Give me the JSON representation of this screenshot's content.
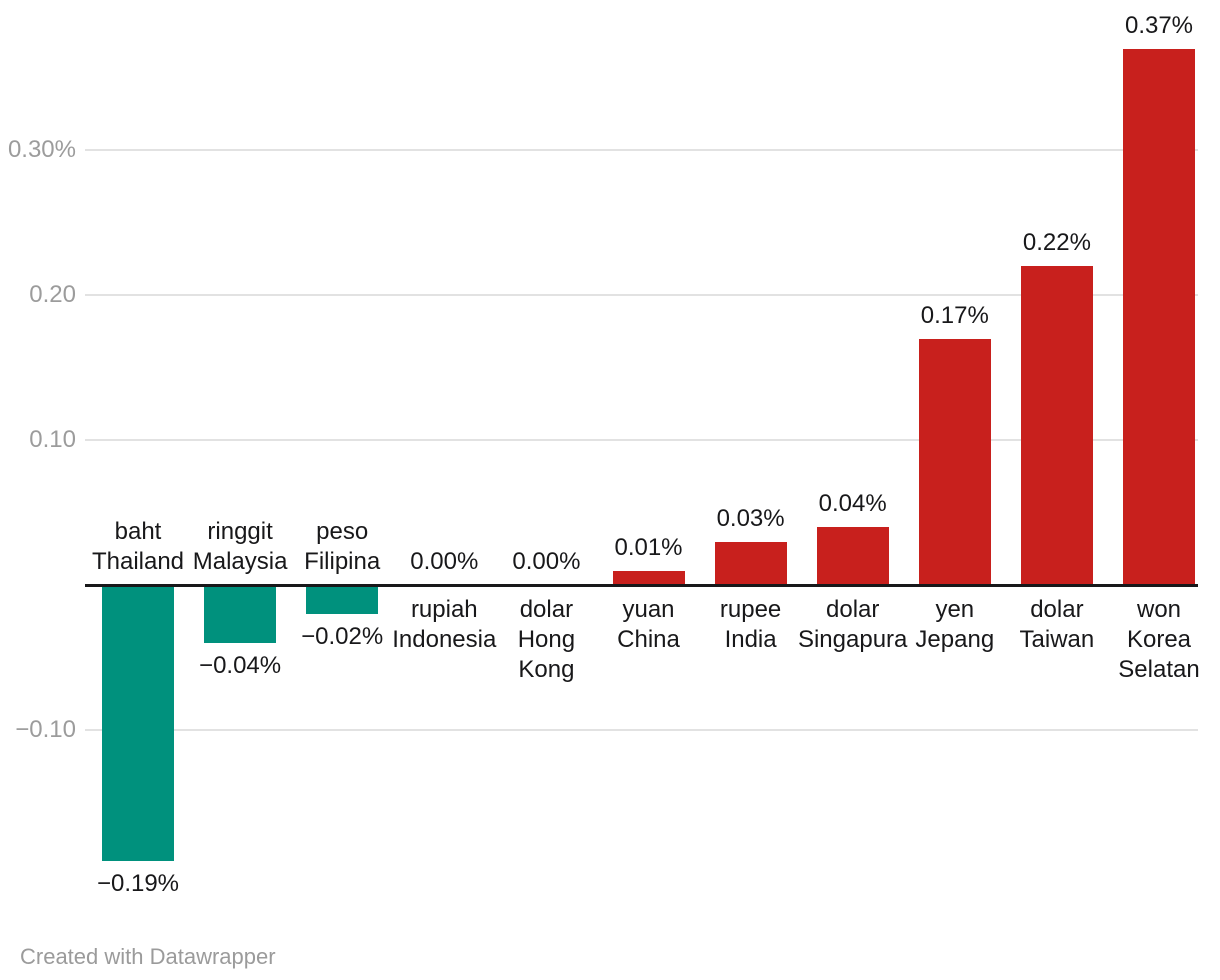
{
  "chart_data": {
    "type": "bar",
    "title": "",
    "xlabel": "",
    "ylabel": "",
    "unit": "%",
    "categories": [
      "baht Thailand",
      "ringgit Malaysia",
      "peso Filipina",
      "rupiah Indonesia",
      "dolar Hong Kong",
      "yuan China",
      "rupee India",
      "dolar Singapura",
      "yen Jepang",
      "dolar Taiwan",
      "won Korea Selatan"
    ],
    "category_lines": [
      [
        "baht",
        "Thailand"
      ],
      [
        "ringgit",
        "Malaysia"
      ],
      [
        "peso",
        "Filipina"
      ],
      [
        "rupiah",
        "Indonesia"
      ],
      [
        "dolar",
        "Hong",
        "Kong"
      ],
      [
        "yuan",
        "China"
      ],
      [
        "rupee",
        "India"
      ],
      [
        "dolar",
        "Singapura"
      ],
      [
        "yen",
        "Jepang"
      ],
      [
        "dolar",
        "Taiwan"
      ],
      [
        "won",
        "Korea",
        "Selatan"
      ]
    ],
    "values": [
      -0.19,
      -0.04,
      -0.02,
      0.0,
      0.0,
      0.01,
      0.03,
      0.04,
      0.17,
      0.22,
      0.37
    ],
    "value_labels": [
      "−0.19%",
      "−0.04%",
      "−0.02%",
      "0.00%",
      "0.00%",
      "0.01%",
      "0.03%",
      "0.04%",
      "0.17%",
      "0.22%",
      "0.37%"
    ],
    "y_ticks": [
      {
        "label": "0.30%",
        "value": 0.3
      },
      {
        "label": "0.20",
        "value": 0.2
      },
      {
        "label": "0.10",
        "value": 0.1
      },
      {
        "label": "−0.10",
        "value": -0.1
      }
    ],
    "ylim": [
      -0.27,
      0.4
    ],
    "grid": true,
    "legend": "none",
    "colors": {
      "positive": "#c8201d",
      "negative": "#00917d",
      "axis_line": "#18181a",
      "gridline": "#e2e2e2",
      "tick_label": "#9c9c9c",
      "value_label": "#18181a",
      "category_label": "#18181a"
    }
  },
  "footer": {
    "credit": "Created with Datawrapper"
  }
}
